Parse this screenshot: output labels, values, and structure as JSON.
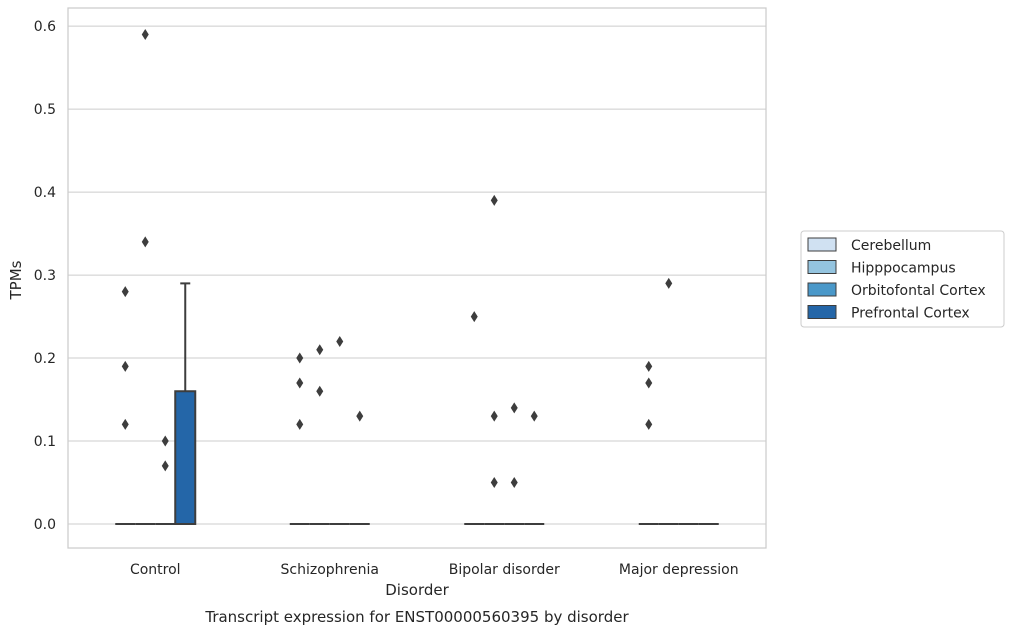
{
  "chart_data": {
    "type": "box",
    "title": "",
    "caption": "Transcript expression for ENST00000560395 by disorder",
    "xlabel": "Disorder",
    "ylabel": "TPMs",
    "ylim": [
      -0.029,
      0.62
    ],
    "yticks": [
      0.0,
      0.1,
      0.2,
      0.3,
      0.4,
      0.5,
      0.6
    ],
    "ytick_labels": [
      "0.0",
      "0.1",
      "0.2",
      "0.3",
      "0.4",
      "0.5",
      "0.6"
    ],
    "grid": "horizontal",
    "legend_position": "right",
    "categories": [
      "Control",
      "Schizophrenia",
      "Bipolar disorder",
      "Major depression"
    ],
    "hue_colors": {
      "Cerebellum": "#d0e1f2",
      "Hipppocampus": "#94c4df",
      "Orbitofontal Cortex": "#4a98c9",
      "Prefrontal Cortex": "#2466a8"
    },
    "series": [
      {
        "name": "Cerebellum",
        "boxes": [
          {
            "q1": 0,
            "median": 0,
            "q3": 0,
            "whisker_low": 0,
            "whisker_high": 0,
            "outliers": [
              0.12,
              0.19,
              0.28
            ]
          },
          {
            "q1": 0,
            "median": 0,
            "q3": 0,
            "whisker_low": 0,
            "whisker_high": 0,
            "outliers": [
              0.12,
              0.17,
              0.2
            ]
          },
          {
            "q1": 0,
            "median": 0,
            "q3": 0,
            "whisker_low": 0,
            "whisker_high": 0,
            "outliers": [
              0.25
            ]
          },
          {
            "q1": 0,
            "median": 0,
            "q3": 0,
            "whisker_low": 0,
            "whisker_high": 0,
            "outliers": [
              0.12,
              0.17,
              0.19
            ]
          }
        ]
      },
      {
        "name": "Hipppocampus",
        "boxes": [
          {
            "q1": 0,
            "median": 0,
            "q3": 0,
            "whisker_low": 0,
            "whisker_high": 0,
            "outliers": [
              0.34,
              0.59
            ]
          },
          {
            "q1": 0,
            "median": 0,
            "q3": 0,
            "whisker_low": 0,
            "whisker_high": 0,
            "outliers": [
              0.16,
              0.21
            ]
          },
          {
            "q1": 0,
            "median": 0,
            "q3": 0,
            "whisker_low": 0,
            "whisker_high": 0,
            "outliers": [
              0.05,
              0.13,
              0.39
            ]
          },
          {
            "q1": 0,
            "median": 0,
            "q3": 0,
            "whisker_low": 0,
            "whisker_high": 0,
            "outliers": [
              0.29
            ]
          }
        ]
      },
      {
        "name": "Orbitofontal Cortex",
        "boxes": [
          {
            "q1": 0,
            "median": 0,
            "q3": 0,
            "whisker_low": 0,
            "whisker_high": 0,
            "outliers": [
              0.07,
              0.1
            ]
          },
          {
            "q1": 0,
            "median": 0,
            "q3": 0,
            "whisker_low": 0,
            "whisker_high": 0,
            "outliers": [
              0.22
            ]
          },
          {
            "q1": 0,
            "median": 0,
            "q3": 0,
            "whisker_low": 0,
            "whisker_high": 0,
            "outliers": [
              0.05,
              0.14
            ]
          },
          {
            "q1": 0,
            "median": 0,
            "q3": 0,
            "whisker_low": 0,
            "whisker_high": 0,
            "outliers": []
          }
        ]
      },
      {
        "name": "Prefrontal Cortex",
        "boxes": [
          {
            "q1": 0,
            "median": 0,
            "q3": 0.16,
            "whisker_low": 0,
            "whisker_high": 0.29,
            "outliers": []
          },
          {
            "q1": 0,
            "median": 0,
            "q3": 0,
            "whisker_low": 0,
            "whisker_high": 0,
            "outliers": [
              0.13
            ]
          },
          {
            "q1": 0,
            "median": 0,
            "q3": 0,
            "whisker_low": 0,
            "whisker_high": 0,
            "outliers": [
              0.13
            ]
          },
          {
            "q1": 0,
            "median": 0,
            "q3": 0,
            "whisker_low": 0,
            "whisker_high": 0,
            "outliers": []
          }
        ]
      }
    ]
  }
}
